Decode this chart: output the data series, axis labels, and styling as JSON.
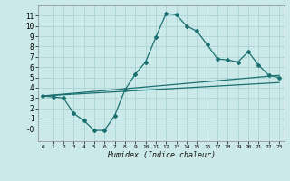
{
  "xlabel": "Humidex (Indice chaleur)",
  "bg_color": "#cce9e9",
  "grid_color": "#aad4d4",
  "line_color": "#1a7070",
  "xlim": [
    -0.5,
    23.5
  ],
  "ylim": [
    -1.2,
    12.0
  ],
  "xticks": [
    0,
    1,
    2,
    3,
    4,
    5,
    6,
    7,
    8,
    9,
    10,
    11,
    12,
    13,
    14,
    15,
    16,
    17,
    18,
    19,
    20,
    21,
    22,
    23
  ],
  "yticks": [
    0,
    1,
    2,
    3,
    4,
    5,
    6,
    7,
    8,
    9,
    10,
    11
  ],
  "ytick_labels": [
    "-0",
    "1",
    "2",
    "3",
    "4",
    "5",
    "6",
    "7",
    "8",
    "9",
    "10",
    "11"
  ],
  "line2_x": [
    0,
    23
  ],
  "line2_y": [
    3.2,
    5.2
  ],
  "line3_x": [
    0,
    23
  ],
  "line3_y": [
    3.2,
    4.5
  ],
  "curve_x": [
    0,
    1,
    2,
    3,
    4,
    5,
    6,
    7,
    8,
    9,
    10,
    11,
    12,
    13,
    14,
    15,
    16,
    17,
    18,
    19,
    20,
    21,
    22,
    23
  ],
  "curve_y": [
    3.2,
    3.1,
    3.0,
    1.5,
    0.8,
    -0.15,
    -0.15,
    1.3,
    3.8,
    5.3,
    6.5,
    8.9,
    11.2,
    11.1,
    10.0,
    9.5,
    8.2,
    6.8,
    6.7,
    6.5,
    7.5,
    6.2,
    5.2,
    5.0
  ]
}
